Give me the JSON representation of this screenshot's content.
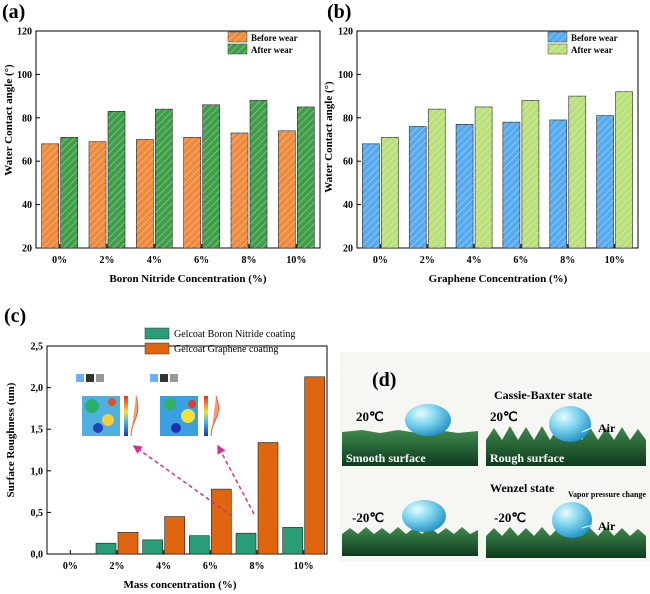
{
  "colors": {
    "orange": "#f08a3c",
    "green": "#3f9e48",
    "blue": "#55aaf0",
    "lightgreen": "#b9e07a",
    "teal": "#2a9d78",
    "darkorange": "#e0650f",
    "arrow": "#d6308a"
  },
  "chart_data": [
    {
      "panel": "(a)",
      "type": "bar",
      "categories": [
        "0%",
        "2%",
        "4%",
        "6%",
        "8%",
        "10%"
      ],
      "series": [
        {
          "name": "Before wear",
          "values": [
            68,
            69,
            70,
            71,
            73,
            74
          ]
        },
        {
          "name": "After wear",
          "values": [
            71,
            83,
            84,
            86,
            88,
            85
          ]
        }
      ],
      "xlabel": "Boron Nitride Concentration (%)",
      "ylabel": "Water Contact angle (°)",
      "ylim": [
        20,
        120
      ],
      "yticks": [
        "20",
        "40",
        "60",
        "80",
        "100",
        "120"
      ],
      "legend": "top-right"
    },
    {
      "panel": "(b)",
      "type": "bar",
      "categories": [
        "0%",
        "2%",
        "4%",
        "6%",
        "8%",
        "10%"
      ],
      "series": [
        {
          "name": "Before wear",
          "values": [
            68,
            76,
            77,
            78,
            79,
            81
          ]
        },
        {
          "name": "After wear",
          "values": [
            71,
            84,
            85,
            88,
            90,
            92
          ]
        }
      ],
      "xlabel": "Graphene Concentration (%)",
      "ylabel": "Water Contact angle (°)",
      "ylim": [
        20,
        120
      ],
      "yticks": [
        "20",
        "40",
        "60",
        "80",
        "100",
        "120"
      ],
      "legend": "top-right"
    },
    {
      "panel": "(c)",
      "type": "bar",
      "categories": [
        "0%",
        "2%",
        "4%",
        "6%",
        "8%",
        "10%"
      ],
      "series": [
        {
          "name": "Gelcoat Boron Nitride coating",
          "values": [
            0,
            0.13,
            0.17,
            0.22,
            0.25,
            0.32
          ]
        },
        {
          "name": "Gelcoat Graphene coating",
          "values": [
            0,
            0.26,
            0.45,
            0.78,
            1.34,
            2.13
          ]
        }
      ],
      "xlabel": "Mass concentration (%)",
      "ylabel": "Surface Roughness (um)",
      "ylim": [
        0,
        2.5
      ],
      "yticks": [
        "0,0",
        "0,5",
        "1,0",
        "1,5",
        "2,0",
        "2,5"
      ],
      "legend": "top-left"
    }
  ],
  "panel_d": {
    "letter": "(d)",
    "top_left": {
      "temp": "20℃",
      "label": "Smooth surface"
    },
    "top_right": {
      "title": "Cassie-Baxter state",
      "temp": "20℃",
      "air": "Air",
      "label": "Rough surface"
    },
    "bottom_left": {
      "temp": "-20℃"
    },
    "bottom_right": {
      "title": "Wenzel state",
      "temp": "-20℃",
      "note": "Vapor pressure change",
      "air": "Air"
    }
  }
}
